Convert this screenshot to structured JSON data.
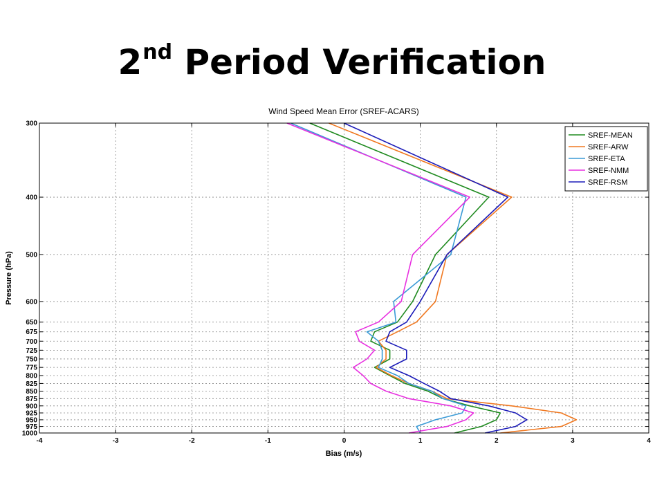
{
  "slide": {
    "title_main": "2",
    "title_sup": "nd",
    "title_rest": " Period Verification"
  },
  "chart_data": {
    "type": "line",
    "title": "Wind Speed Mean Error (SREF-ACARS)",
    "xlabel": "Bias (m/s)",
    "ylabel": "Pressure (hPa)",
    "xlim": [
      -4,
      4
    ],
    "ylim": [
      1000,
      300
    ],
    "y_scale": "log",
    "grid": true,
    "legend_position": "top-right",
    "x_ticks": [
      -4,
      -3,
      -2,
      -1,
      0,
      1,
      2,
      3,
      4
    ],
    "y_ticks": [
      300,
      400,
      500,
      600,
      650,
      675,
      700,
      725,
      750,
      775,
      800,
      825,
      850,
      875,
      900,
      925,
      950,
      975,
      1000
    ],
    "pressure_levels": [
      300,
      400,
      500,
      600,
      650,
      675,
      700,
      725,
      750,
      775,
      800,
      825,
      850,
      875,
      900,
      925,
      950,
      975,
      1000
    ],
    "series": [
      {
        "name": "SREF-MEAN",
        "color": "#1f8a1f",
        "values": [
          -0.45,
          1.9,
          1.2,
          0.9,
          0.7,
          0.4,
          0.35,
          0.6,
          0.6,
          0.4,
          0.6,
          0.8,
          1.1,
          1.3,
          1.65,
          2.05,
          2.0,
          1.8,
          1.45
        ]
      },
      {
        "name": "SREF-ARW",
        "color": "#f07820",
        "values": [
          -0.2,
          2.2,
          1.35,
          1.2,
          0.95,
          0.7,
          0.45,
          0.55,
          0.55,
          0.42,
          0.62,
          0.85,
          1.15,
          1.35,
          2.2,
          2.85,
          3.05,
          2.85,
          2.05
        ]
      },
      {
        "name": "SREF-ETA",
        "color": "#3a9ad6",
        "values": [
          -0.7,
          1.6,
          1.4,
          0.65,
          0.68,
          0.3,
          0.45,
          0.5,
          0.5,
          0.45,
          0.7,
          0.85,
          1.15,
          1.3,
          1.6,
          1.55,
          1.2,
          0.95,
          1.0
        ]
      },
      {
        "name": "SREF-NMM",
        "color": "#e830e0",
        "values": [
          -0.75,
          1.65,
          0.9,
          0.75,
          0.45,
          0.15,
          0.2,
          0.4,
          0.3,
          0.12,
          0.25,
          0.35,
          0.55,
          0.85,
          1.4,
          1.7,
          1.6,
          1.35,
          0.85
        ]
      },
      {
        "name": "SREF-RSM",
        "color": "#1a1ab8",
        "values": [
          0.0,
          2.15,
          1.35,
          1.0,
          0.82,
          0.6,
          0.55,
          0.82,
          0.82,
          0.6,
          0.85,
          1.05,
          1.25,
          1.4,
          1.9,
          2.25,
          2.4,
          2.25,
          1.85
        ]
      }
    ]
  }
}
